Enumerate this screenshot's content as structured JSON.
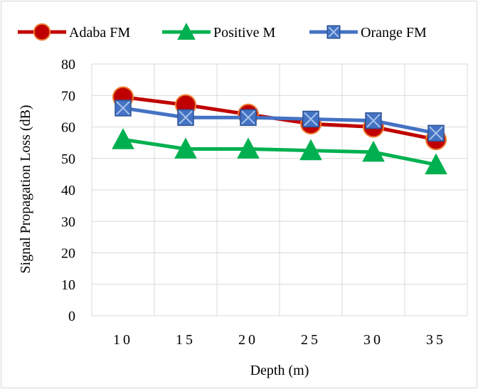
{
  "chart_data": {
    "type": "line",
    "title": "",
    "xlabel": "Depth (m)",
    "ylabel": "Signal Propagation Loss (dB)",
    "categories": [
      "10",
      "15",
      "20",
      "25",
      "30",
      "35"
    ],
    "ylim": [
      0,
      80
    ],
    "yticks": [
      "0",
      "10",
      "20",
      "30",
      "40",
      "50",
      "60",
      "70",
      "80"
    ],
    "grid": true,
    "legend_position": "top",
    "series": [
      {
        "name": "Adaba FM",
        "marker": "circle",
        "color": "#c00000",
        "marker_fill": "#c00000",
        "marker_edge": "#ed7d31",
        "values": [
          69.5,
          67,
          64,
          61,
          60,
          56
        ]
      },
      {
        "name": "Positive M",
        "marker": "triangle",
        "color": "#00b050",
        "marker_fill": "#00b050",
        "marker_edge": "#00b050",
        "values": [
          56,
          53,
          53,
          52.5,
          52,
          48
        ]
      },
      {
        "name": "Orange FM",
        "marker": "square-x",
        "color": "#4472c4",
        "marker_fill": "#4472c4",
        "marker_edge": "#2f5597",
        "values": [
          66,
          63,
          63,
          62.5,
          62,
          58
        ]
      }
    ]
  }
}
